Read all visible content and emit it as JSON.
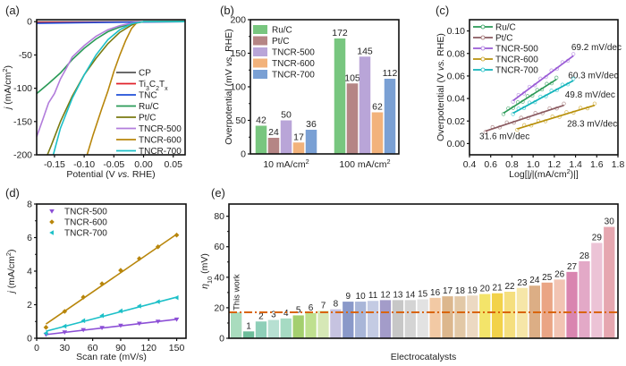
{
  "chart_data": [
    {
      "id": "a",
      "panel_label": "(a)",
      "type": "line",
      "title": "",
      "xlabel_parts": [
        "Potential (V ",
        "vs.",
        " RHE)"
      ],
      "ylabel_parts": [
        "j",
        " (mA/cm",
        "2",
        ")"
      ],
      "xlim": [
        -0.18,
        0.07
      ],
      "ylim": [
        -200,
        3
      ],
      "xticks": [
        -0.15,
        -0.1,
        -0.05,
        0.0,
        0.05
      ],
      "xtick_labels": [
        "-0.15",
        "-0.10",
        "-0.05",
        "0.00",
        "0.05"
      ],
      "yticks": [
        0,
        -50,
        -100,
        -150,
        -200
      ],
      "ytick_labels": [
        "0",
        "-50",
        "-100",
        "-150",
        "-200"
      ],
      "legend_position": "bottom-right",
      "series": [
        {
          "name": "CP",
          "label_html": "CP",
          "color": "#555555",
          "points": [
            [
              -0.18,
              -0.5
            ],
            [
              0.07,
              0
            ]
          ]
        },
        {
          "name": "Ti3C2Tx",
          "label_parts": [
            "Ti",
            "3",
            "C",
            "2",
            "T",
            "x"
          ],
          "color": "#e0222a",
          "points": [
            [
              -0.18,
              -1.2
            ],
            [
              0.07,
              0
            ]
          ]
        },
        {
          "name": "TNC",
          "label_html": "TNC",
          "color": "#1f4fd8",
          "points": [
            [
              -0.18,
              -2.5
            ],
            [
              -0.1,
              -1.5
            ],
            [
              0.0,
              -0.5
            ],
            [
              0.07,
              0
            ]
          ]
        },
        {
          "name": "Ru/C",
          "color": "#2a9a57",
          "points": [
            [
              -0.18,
              -108
            ],
            [
              -0.16,
              -93
            ],
            [
              -0.14,
              -77
            ],
            [
              -0.12,
              -57
            ],
            [
              -0.1,
              -40
            ],
            [
              -0.08,
              -26
            ],
            [
              -0.06,
              -15
            ],
            [
              -0.04,
              -8
            ],
            [
              -0.02,
              -3
            ],
            [
              0.0,
              0
            ],
            [
              0.07,
              1
            ]
          ]
        },
        {
          "name": "Pt/C",
          "color": "#7a7a10",
          "points": [
            [
              -0.162,
              -200
            ],
            [
              -0.155,
              -185
            ],
            [
              -0.14,
              -150
            ],
            [
              -0.12,
              -112
            ],
            [
              -0.1,
              -80
            ],
            [
              -0.08,
              -55
            ],
            [
              -0.06,
              -33
            ],
            [
              -0.04,
              -16
            ],
            [
              -0.02,
              -5
            ],
            [
              -0.01,
              -1
            ],
            [
              0.0,
              0
            ],
            [
              0.07,
              0
            ]
          ]
        },
        {
          "name": "TNCR-500",
          "color": "#b27ddb",
          "points": [
            [
              -0.18,
              -173
            ],
            [
              -0.17,
              -148
            ],
            [
              -0.16,
              -122
            ],
            [
              -0.15,
              -108
            ],
            [
              -0.14,
              -86
            ],
            [
              -0.13,
              -70
            ],
            [
              -0.12,
              -53
            ],
            [
              -0.1,
              -36
            ],
            [
              -0.08,
              -22
            ],
            [
              -0.06,
              -12
            ],
            [
              -0.04,
              -6
            ],
            [
              -0.02,
              -2
            ],
            [
              0.0,
              0
            ],
            [
              0.07,
              0
            ]
          ]
        },
        {
          "name": "TNCR-600",
          "color": "#b8860b",
          "points": [
            [
              -0.095,
              -200
            ],
            [
              -0.085,
              -170
            ],
            [
              -0.07,
              -130
            ],
            [
              -0.06,
              -104
            ],
            [
              -0.05,
              -75
            ],
            [
              -0.04,
              -50
            ],
            [
              -0.03,
              -28
            ],
            [
              -0.02,
              -10
            ],
            [
              -0.012,
              -2
            ],
            [
              0.0,
              0
            ],
            [
              0.07,
              0
            ]
          ]
        },
        {
          "name": "TNCR-700",
          "color": "#1cc0c8",
          "points": [
            [
              -0.152,
              -200
            ],
            [
              -0.14,
              -160
            ],
            [
              -0.12,
              -115
            ],
            [
              -0.1,
              -80
            ],
            [
              -0.08,
              -50
            ],
            [
              -0.06,
              -27
            ],
            [
              -0.04,
              -12
            ],
            [
              -0.02,
              -3
            ],
            [
              0.0,
              0
            ],
            [
              0.07,
              0
            ]
          ]
        }
      ]
    },
    {
      "id": "b",
      "panel_label": "(b)",
      "type": "bar",
      "title": "",
      "ylabel_parts": [
        "Overpotential (mV ",
        "vs.",
        " RHE)"
      ],
      "ylim": [
        0,
        200
      ],
      "yticks": [
        0,
        50,
        100,
        150,
        200
      ],
      "ytick_labels": [
        "0",
        "50",
        "100",
        "150",
        "200"
      ],
      "categories": [
        "10 mA/cm2",
        "100 mA/cm2"
      ],
      "category_label_parts": [
        [
          "10 mA/cm",
          "2"
        ],
        [
          "100 mA/cm",
          "2"
        ]
      ],
      "legend_position": "top-left",
      "series": [
        {
          "name": "Ru/C",
          "color": "#78c67f",
          "label_color": "#3aa049",
          "values": [
            42,
            172
          ]
        },
        {
          "name": "Pt/C",
          "color": "#b58585",
          "label_color": "#9a6a6a",
          "values": [
            24,
            105
          ]
        },
        {
          "name": "TNCR-500",
          "color": "#b9a5d8",
          "label_color": "#9a7fc9",
          "values": [
            50,
            145
          ]
        },
        {
          "name": "TNCR-600",
          "color": "#f2b27b",
          "label_color": "#e58a2e",
          "values": [
            17,
            62
          ]
        },
        {
          "name": "TNCR-700",
          "color": "#7aa0d4",
          "label_color": "#6a90c8",
          "values": [
            36,
            112
          ]
        }
      ]
    },
    {
      "id": "c",
      "panel_label": "(c)",
      "type": "scatter",
      "title": "",
      "xlabel_parts": [
        "Log[|",
        "j",
        "|(mA/cm",
        "2",
        ")|]"
      ],
      "ylabel_parts": [
        "Overpotential (V ",
        "vs.",
        " RHE)"
      ],
      "xlim": [
        0.4,
        1.8
      ],
      "ylim": [
        -0.01,
        0.11
      ],
      "xticks": [
        0.4,
        0.6,
        0.8,
        1.0,
        1.2,
        1.4,
        1.6,
        1.8
      ],
      "xtick_labels": [
        "0.4",
        "0.6",
        "0.8",
        "1.0",
        "1.2",
        "1.4",
        "1.6",
        "1.8"
      ],
      "yticks": [
        0.0,
        0.02,
        0.04,
        0.06,
        0.08,
        0.1
      ],
      "ytick_labels": [
        "0.00",
        "0.02",
        "0.04",
        "0.06",
        "0.08",
        "0.10"
      ],
      "legend_position": "top-left",
      "series": [
        {
          "name": "Ru/C",
          "color": "#2a9a57",
          "fit_color": "#2a9a57",
          "x_range": [
            0.72,
            1.22
          ],
          "y_range": [
            0.027,
            0.057
          ],
          "tafel_slope": "60.3 mV/dec"
        },
        {
          "name": "Pt/C",
          "color": "#9a6a6a",
          "fit_color": "#8a5a60",
          "x_range": [
            0.55,
            1.29
          ],
          "y_range": [
            0.011,
            0.034
          ],
          "tafel_slope": "31.6 mV/dec"
        },
        {
          "name": "TNCR-500",
          "color": "#a874dc",
          "fit_color": "#9a5bd6",
          "x_range": [
            0.81,
            1.38
          ],
          "y_range": [
            0.038,
            0.078
          ],
          "tafel_slope": "69.2 mV/dec"
        },
        {
          "name": "TNCR-600",
          "color": "#c9a01a",
          "fit_color": "#b8900b",
          "x_range": [
            0.85,
            1.58
          ],
          "y_range": [
            0.013,
            0.034
          ],
          "tafel_slope": "28.3 mV/dec"
        },
        {
          "name": "TNCR-700",
          "color": "#1cc0c8",
          "fit_color": "#12b3ba",
          "x_range": [
            0.81,
            1.38
          ],
          "y_range": [
            0.027,
            0.056
          ],
          "tafel_slope": "49.8 mV/dec"
        }
      ]
    },
    {
      "id": "d",
      "panel_label": "(d)",
      "type": "scatter",
      "title": "",
      "xlabel": "Scan rate (mV/s)",
      "ylabel_parts": [
        "j",
        " (mA/cm",
        "2",
        ")"
      ],
      "xlim": [
        0,
        160
      ],
      "ylim": [
        0,
        8
      ],
      "xticks": [
        0,
        30,
        60,
        90,
        120,
        150
      ],
      "xtick_labels": [
        "0",
        "30",
        "60",
        "90",
        "120",
        "150"
      ],
      "yticks": [
        0,
        2,
        4,
        6,
        8
      ],
      "ytick_labels": [
        "0",
        "2",
        "4",
        "6",
        "8"
      ],
      "legend_position": "top-left",
      "x": [
        10,
        30,
        50,
        70,
        90,
        110,
        130,
        150
      ],
      "series": [
        {
          "name": "TNCR-500",
          "color": "#8c4fd6",
          "marker": "triangle-down",
          "values": [
            0.22,
            0.36,
            0.5,
            0.63,
            0.76,
            0.88,
            1.0,
            1.13
          ],
          "fit": [
            0.22,
            1.13
          ]
        },
        {
          "name": "TNCR-600",
          "color": "#b8860b",
          "marker": "diamond",
          "values": [
            0.65,
            1.6,
            2.45,
            3.25,
            4.05,
            4.75,
            5.45,
            6.15
          ],
          "fit": [
            0.85,
            6.2
          ]
        },
        {
          "name": "TNCR-700",
          "color": "#1cc0c8",
          "marker": "triangle-left",
          "values": [
            0.3,
            0.72,
            1.05,
            1.35,
            1.63,
            1.92,
            2.18,
            2.42
          ],
          "fit": [
            0.42,
            2.45
          ]
        }
      ]
    },
    {
      "id": "e",
      "panel_label": "(e)",
      "type": "bar",
      "title": "",
      "xlabel": "Electrocatalysts",
      "ylabel_parts": [
        "η",
        "10",
        " (mV)"
      ],
      "ylim": [
        0,
        88
      ],
      "yticks": [
        0,
        20,
        40,
        60,
        80
      ],
      "ytick_labels": [
        "0",
        "20",
        "40",
        "60",
        "80"
      ],
      "reference_line": {
        "value": 17,
        "color": "#d9650c",
        "style": "dash-dot"
      },
      "this_work_label": "This work",
      "this_work_label_color": "#6fc19a",
      "categories": [
        "This work",
        "1",
        "2",
        "3",
        "4",
        "5",
        "6",
        "7",
        "8",
        "9",
        "10",
        "11",
        "12",
        "13",
        "14",
        "15",
        "16",
        "17",
        "18",
        "19",
        "20",
        "21",
        "22",
        "23",
        "24",
        "25",
        "26",
        "27",
        "28",
        "29",
        "30"
      ],
      "values": [
        17,
        4.5,
        11,
        12,
        13,
        15,
        16.5,
        18,
        19,
        24,
        24,
        24.5,
        25,
        25,
        25,
        25.5,
        26.5,
        27.5,
        27.5,
        28,
        29,
        29.5,
        30.5,
        33,
        34.5,
        36.5,
        38.5,
        43.5,
        50.5,
        62.5,
        73
      ],
      "colors": [
        "#a9dcbe",
        "#6dbd9a",
        "#8ecfb8",
        "#b7e0d2",
        "#a6dbc3",
        "#a4cf6e",
        "#bfe08f",
        "#d6e8b6",
        "#c6c3e0",
        "#8a99c9",
        "#a9b6d8",
        "#c4cbe3",
        "#a39cc9",
        "#c7c7c7",
        "#d4d4d4",
        "#e2e2e2",
        "#f2c9a4",
        "#dcb78d",
        "#e2c8a6",
        "#ecd9c2",
        "#f3e46a",
        "#f2d24a",
        "#f5df7e",
        "#f6e6a8",
        "#dcae85",
        "#eaa585",
        "#f2c4b3",
        "#d985b0",
        "#e3a9c7",
        "#ecc3d6",
        "#e6a7b0"
      ]
    }
  ]
}
